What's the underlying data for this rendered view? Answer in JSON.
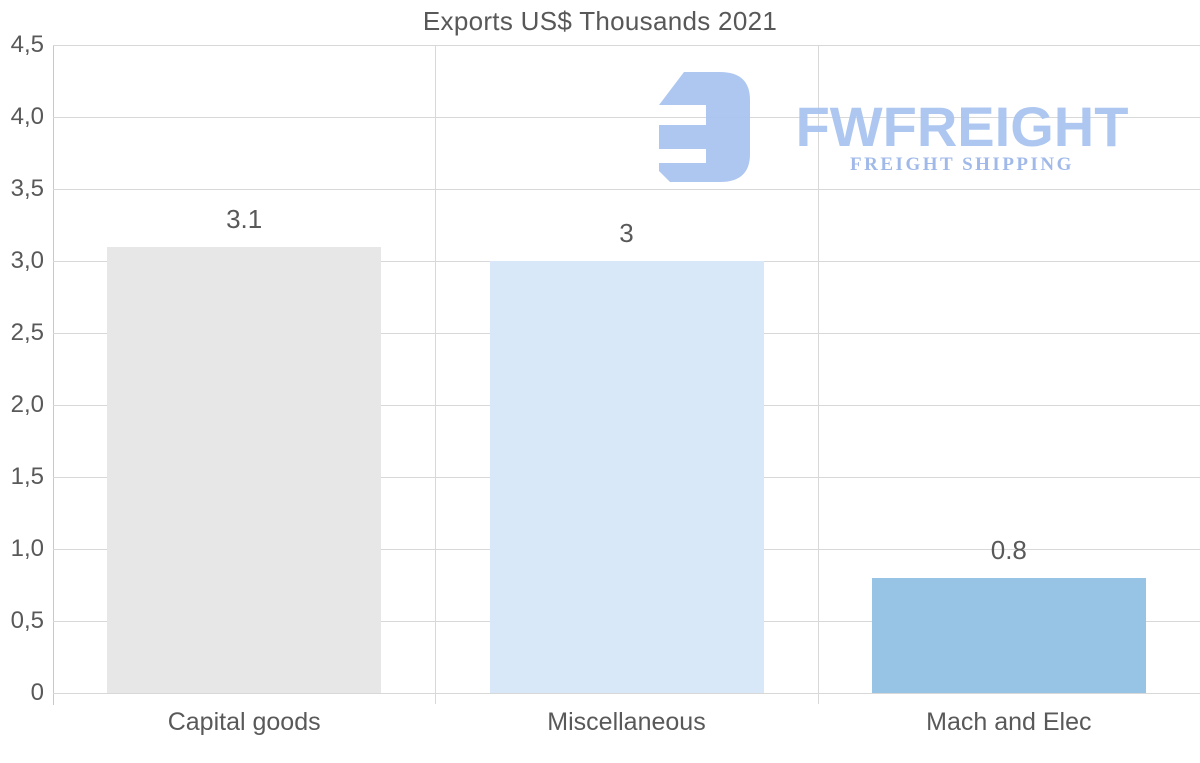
{
  "title": "Exports US$ Thousands 2021",
  "chart_data": {
    "type": "bar",
    "title": "Exports US$ Thousands 2021",
    "categories": [
      "Capital goods",
      "Miscellaneous",
      "Mach and Elec"
    ],
    "values": [
      3.1,
      3,
      0.8
    ],
    "value_labels": [
      "3.1",
      "3",
      "0.8"
    ],
    "bar_colors": [
      "#e7e7e7",
      "#d8e8f8",
      "#97c3e5"
    ],
    "xlabel": "",
    "ylabel": "",
    "ylim": [
      0,
      4.5
    ],
    "ytick_step": 0.5,
    "ytick_labels": [
      "4,5",
      "4,0",
      "3,5",
      "3,0",
      "2,5",
      "2,0",
      "1,5",
      "1,0",
      "0,5",
      "0"
    ],
    "grid": true,
    "legend": false,
    "decimal_separator_axis": "comma",
    "decimal_separator_labels": "period"
  },
  "watermark": {
    "brand": "FWFREIGHT",
    "tagline": "FREIGHT SHIPPING",
    "logo_icon": "fwfreight-f-glyph",
    "color_brand": "#a9c5f0",
    "color_tagline": "#9cb6e8"
  },
  "colors": {
    "background": "#ffffff",
    "text": "#595959",
    "gridline": "#d8d8d8",
    "axis_line": "#c9c9c9"
  }
}
